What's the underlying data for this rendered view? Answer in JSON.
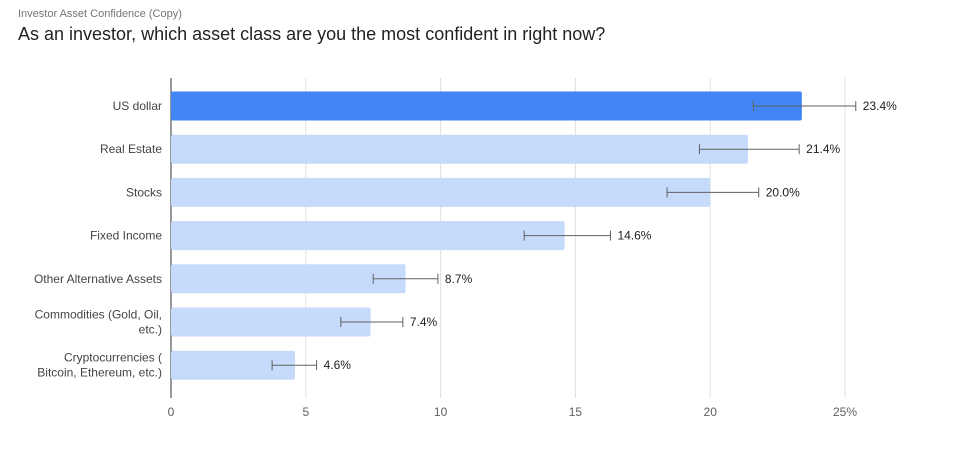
{
  "header": {
    "subtitle": "Investor Asset Confidence (Copy)",
    "title": "As an investor, which asset class are you the most confident in right now?"
  },
  "chart_data": {
    "type": "bar",
    "orientation": "horizontal",
    "categories": [
      "US dollar",
      "Real Estate",
      "Stocks",
      "Fixed Income",
      "Other Alternative Assets",
      "Commodities (Gold, Oil, etc.)",
      "Cryptocurrencies ( Bitcoin, Ethereum, etc.)"
    ],
    "category_lines": [
      [
        "US dollar"
      ],
      [
        "Real Estate"
      ],
      [
        "Stocks"
      ],
      [
        "Fixed Income"
      ],
      [
        "Other Alternative Assets"
      ],
      [
        "Commodities (Gold, Oil,",
        "etc.)"
      ],
      [
        "Cryptocurrencies (",
        "Bitcoin, Ethereum, etc.)"
      ]
    ],
    "values": [
      23.4,
      21.4,
      20.0,
      14.6,
      8.7,
      7.4,
      4.6
    ],
    "data_labels": [
      "23.4%",
      "21.4%",
      "20.0%",
      "14.6%",
      "8.7%",
      "7.4%",
      "4.6%"
    ],
    "error_bars": [
      [
        21.6,
        25.4
      ],
      [
        19.6,
        23.3
      ],
      [
        18.4,
        21.8
      ],
      [
        13.1,
        16.3
      ],
      [
        7.5,
        9.9
      ],
      [
        6.3,
        8.6
      ],
      [
        3.75,
        5.4
      ]
    ],
    "xlim": [
      0,
      25
    ],
    "x_ticks": [
      "0",
      "5",
      "10",
      "15",
      "20",
      "25%"
    ],
    "grid": true,
    "highlight_color": "#4285f4",
    "bar_color": "#c6dafc",
    "error_bar_color": "#616161"
  }
}
